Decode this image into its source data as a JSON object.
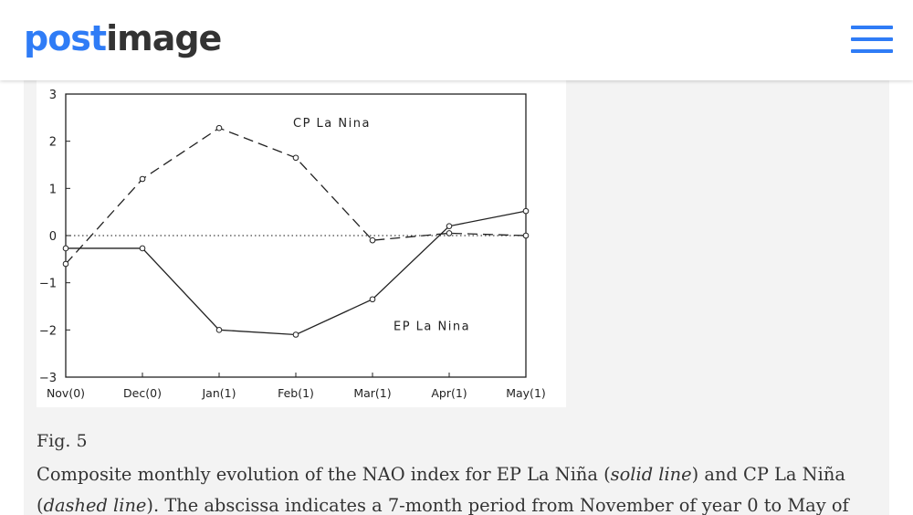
{
  "header": {
    "logo_part1": "post",
    "logo_part2": "image",
    "menu_icon": "hamburger-menu-icon"
  },
  "colors": {
    "brand_blue": "#2f7cf6",
    "logo_dark": "#333333",
    "content_bg": "#f3f3f3"
  },
  "figure": {
    "label": "Fig. 5",
    "caption_parts": [
      "Composite monthly evolution of the NAO index for EP La Niña (",
      "solid line",
      ") and CP La Niña (",
      "dashed line",
      "). The abscissa indicates a 7-month period from November of year 0 to May of"
    ]
  },
  "chart_data": {
    "type": "line",
    "categories": [
      "Nov(0)",
      "Dec(0)",
      "Jan(1)",
      "Feb(1)",
      "Mar(1)",
      "Apr(1)",
      "May(1)"
    ],
    "ylim": [
      -3,
      3
    ],
    "yticks": [
      "3",
      "2",
      "1",
      "0",
      "−1",
      "−2",
      "−3"
    ],
    "ytick_values": [
      3,
      2,
      1,
      0,
      -1,
      -2,
      -3
    ],
    "zero_line": "dotted",
    "series": [
      {
        "name": "CP La Nina",
        "style": "dashed",
        "values": [
          -0.6,
          1.2,
          2.28,
          1.65,
          -0.1,
          0.05,
          0.0
        ]
      },
      {
        "name": "EP La Nina",
        "style": "solid",
        "values": [
          -0.27,
          -0.27,
          -2.0,
          -2.1,
          -1.35,
          0.2,
          0.52
        ]
      }
    ]
  }
}
